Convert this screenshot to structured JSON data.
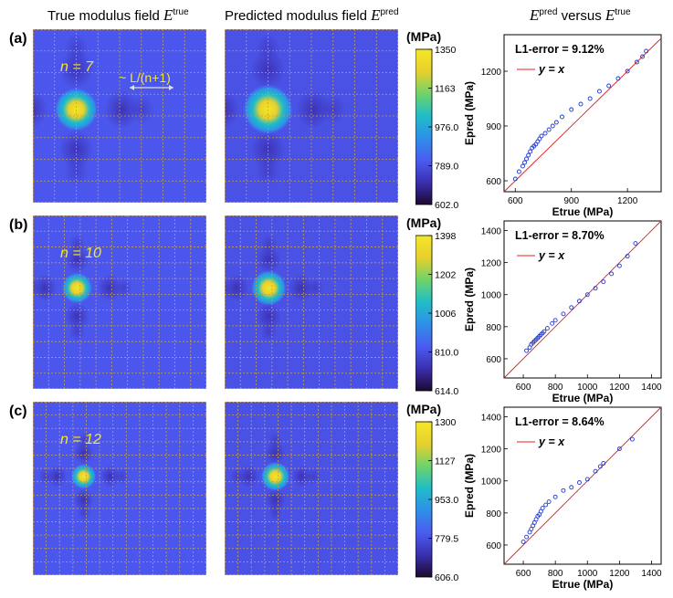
{
  "column_titles": {
    "true": {
      "prefix": "True modulus field ",
      "symbol": "E",
      "sup": "true"
    },
    "pred": {
      "prefix": "Predicted modulus field ",
      "symbol": "E",
      "sup": "pred"
    },
    "scatter": {
      "symbol_a": "E",
      "sup_a": "pred",
      "middle": " versus ",
      "symbol_b": "E",
      "sup_b": "true"
    }
  },
  "grid_line_color": "#c8a040",
  "colormap": [
    "#1a0a2e",
    "#3b2fb0",
    "#4a5cf0",
    "#2f8fe8",
    "#1fbdc7",
    "#6fd36a",
    "#e8d02c",
    "#f3e62a"
  ],
  "identity_line_color": "#e02020",
  "marker_color": "#1f3ad0",
  "rows": [
    {
      "label": "(a)",
      "n_text": "n = 7",
      "annotation": "~ L/(n+1)",
      "unit": "(MPa)",
      "colorbar_ticks": [
        "1350",
        "1163",
        "976.0",
        "789.0",
        "602.0"
      ],
      "error_text": "L1-error = 9.12%",
      "legend_text": "y = x",
      "xlabel": "Etrue (MPa)",
      "ylabel": "Epred (MPa)",
      "chart_data": {
        "type": "scatter",
        "title": "",
        "xlabel": "Etrue (MPa)",
        "ylabel": "Epred (MPa)",
        "xlim": [
          540,
          1380
        ],
        "ylim": [
          540,
          1400
        ],
        "xticks": [
          600,
          900,
          1200
        ],
        "yticks": [
          600,
          900,
          1200
        ],
        "series": [
          {
            "name": "points",
            "x": [
              600,
              620,
              640,
              650,
              660,
              670,
              680,
              690,
              700,
              710,
              720,
              730,
              740,
              760,
              780,
              800,
              820,
              850,
              900,
              950,
              1000,
              1050,
              1100,
              1150,
              1200,
              1250,
              1280,
              1300
            ],
            "y": [
              610,
              650,
              680,
              700,
              720,
              740,
              760,
              780,
              790,
              800,
              815,
              830,
              845,
              860,
              880,
              900,
              920,
              950,
              990,
              1020,
              1050,
              1090,
              1120,
              1160,
              1200,
              1250,
              1280,
              1310
            ]
          },
          {
            "name": "y = x",
            "x": [
              540,
              1380
            ],
            "y": [
              540,
              1380
            ]
          }
        ]
      }
    },
    {
      "label": "(b)",
      "n_text": "n = 10",
      "annotation": "",
      "unit": "(MPa)",
      "colorbar_ticks": [
        "1398",
        "1202",
        "1006",
        "810.0",
        "614.0"
      ],
      "error_text": "L1-error = 8.70%",
      "legend_text": "y = x",
      "xlabel": "Etrue (MPa)",
      "ylabel": "Epred (MPa)",
      "chart_data": {
        "type": "scatter",
        "title": "",
        "xlabel": "Etrue (MPa)",
        "ylabel": "Epred (MPa)",
        "xlim": [
          480,
          1460
        ],
        "ylim": [
          480,
          1460
        ],
        "xticks": [
          600,
          800,
          1000,
          1200,
          1400
        ],
        "yticks": [
          600,
          800,
          1000,
          1200,
          1400
        ],
        "series": [
          {
            "name": "points",
            "x": [
              620,
              640,
              650,
              660,
              670,
              680,
              690,
              700,
              710,
              720,
              730,
              750,
              780,
              800,
              850,
              900,
              950,
              1000,
              1050,
              1100,
              1150,
              1200,
              1250,
              1300
            ],
            "y": [
              650,
              670,
              690,
              700,
              710,
              720,
              730,
              740,
              750,
              760,
              770,
              790,
              820,
              840,
              880,
              920,
              960,
              1000,
              1040,
              1080,
              1130,
              1180,
              1240,
              1320
            ]
          },
          {
            "name": "y = x",
            "x": [
              480,
              1460
            ],
            "y": [
              480,
              1460
            ]
          }
        ]
      }
    },
    {
      "label": "(c)",
      "n_text": "n = 12",
      "annotation": "",
      "unit": "(MPa)",
      "colorbar_ticks": [
        "1300",
        "1127",
        "953.0",
        "779.5",
        "606.0"
      ],
      "error_text": "L1-error = 8.64%",
      "legend_text": "y = x",
      "xlabel": "Etrue (MPa)",
      "ylabel": "Epred (MPa)",
      "chart_data": {
        "type": "scatter",
        "title": "",
        "xlabel": "Etrue (MPa)",
        "ylabel": "Epred (MPa)",
        "xlim": [
          480,
          1460
        ],
        "ylim": [
          480,
          1460
        ],
        "xticks": [
          600,
          800,
          1000,
          1200,
          1400
        ],
        "yticks": [
          600,
          800,
          1000,
          1200,
          1400
        ],
        "series": [
          {
            "name": "points",
            "x": [
              600,
              620,
              640,
              650,
              660,
              670,
              680,
              690,
              700,
              710,
              720,
              740,
              760,
              800,
              850,
              900,
              950,
              1000,
              1050,
              1080,
              1100,
              1200,
              1280
            ],
            "y": [
              620,
              650,
              680,
              700,
              720,
              740,
              760,
              780,
              790,
              810,
              830,
              850,
              870,
              900,
              940,
              960,
              990,
              1010,
              1060,
              1090,
              1110,
              1200,
              1260
            ]
          },
          {
            "name": "y = x",
            "x": [
              480,
              1460
            ],
            "y": [
              480,
              1460
            ]
          }
        ]
      }
    }
  ]
}
